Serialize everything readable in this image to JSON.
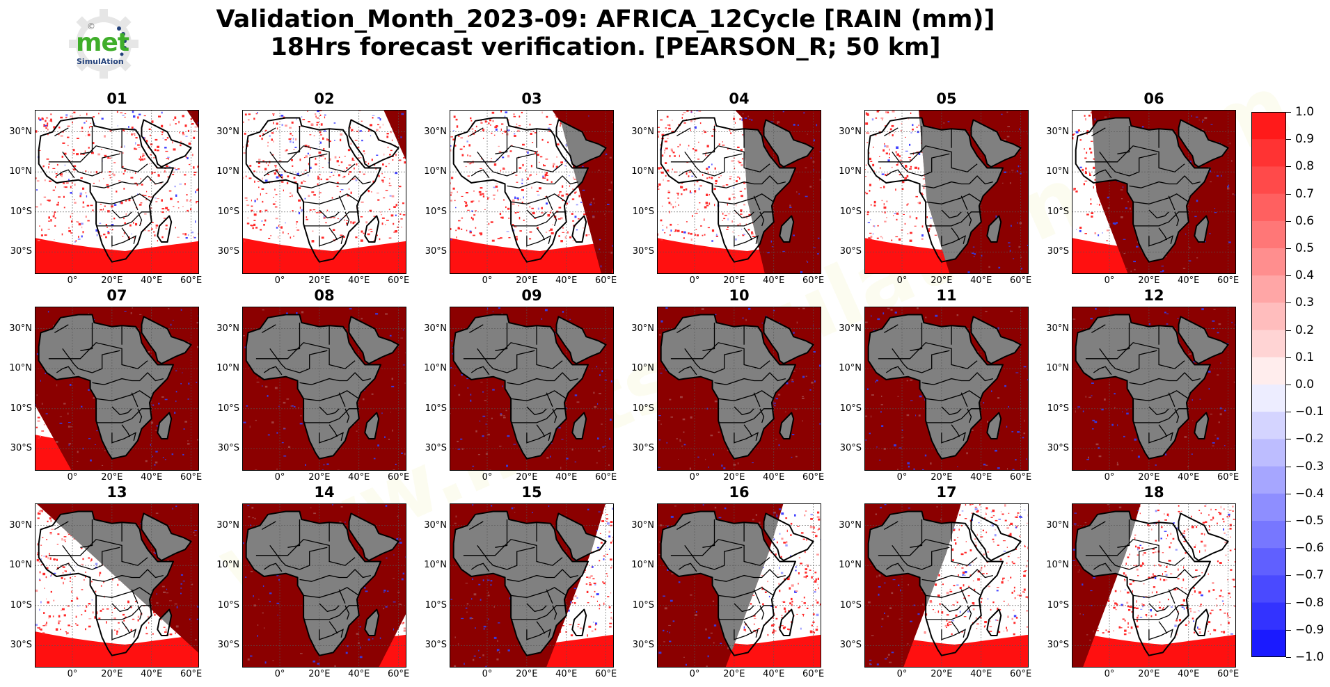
{
  "title_line1": "Validation_Month_2023-09: AFRICA_12Cycle [RAIN (mm)]",
  "title_line2": "18Hrs forecast verification.  [PEARSON_R; 50 km]",
  "logo": {
    "icon": "gear-icon",
    "copyright": "©",
    "word": "met",
    "sub": "SimulAtion"
  },
  "watermark": "www.metsimulation.com",
  "panels": [
    {
      "label": "01",
      "night": [
        [
          1.02,
          0.15
        ],
        [
          0.86,
          -0.1
        ],
        [
          1.06,
          -0.1
        ],
        [
          1.06,
          0.15
        ]
      ]
    },
    {
      "label": "02",
      "night": [
        [
          0.86,
          0.0
        ],
        [
          0.72,
          -0.1
        ],
        [
          1.06,
          -0.1
        ],
        [
          1.06,
          0.45
        ]
      ]
    },
    {
      "label": "03",
      "night": [
        [
          0.68,
          0.08
        ],
        [
          0.55,
          -0.1
        ],
        [
          1.06,
          -0.1
        ],
        [
          1.06,
          0.78
        ],
        [
          0.95,
          1.1
        ]
      ]
    },
    {
      "label": "04",
      "night": [
        [
          0.52,
          0.05
        ],
        [
          0.38,
          -0.1
        ],
        [
          1.06,
          -0.1
        ],
        [
          1.06,
          1.1
        ],
        [
          0.68,
          1.1
        ],
        [
          0.55,
          0.55
        ]
      ]
    },
    {
      "label": "05",
      "night": [
        [
          0.33,
          0.0
        ],
        [
          0.2,
          -0.1
        ],
        [
          1.06,
          -0.1
        ],
        [
          1.06,
          1.1
        ],
        [
          0.55,
          1.1
        ],
        [
          0.38,
          0.55
        ]
      ]
    },
    {
      "label": "06",
      "night": [
        [
          0.12,
          0.0
        ],
        [
          0.0,
          -0.1
        ],
        [
          1.06,
          -0.1
        ],
        [
          1.06,
          1.1
        ],
        [
          0.38,
          1.1
        ],
        [
          0.15,
          0.5
        ]
      ]
    },
    {
      "label": "07",
      "night": [
        [
          -0.1,
          0.42
        ],
        [
          -0.1,
          -0.1
        ],
        [
          1.06,
          -0.1
        ],
        [
          1.06,
          1.1
        ],
        [
          0.28,
          1.1
        ]
      ]
    },
    {
      "label": "08",
      "night": [
        [
          -0.1,
          -0.1
        ],
        [
          1.06,
          -0.1
        ],
        [
          1.06,
          1.1
        ],
        [
          -0.1,
          1.1
        ]
      ]
    },
    {
      "label": "09",
      "night": [
        [
          -0.1,
          -0.1
        ],
        [
          1.06,
          -0.1
        ],
        [
          1.06,
          1.1
        ],
        [
          -0.1,
          1.1
        ]
      ]
    },
    {
      "label": "10",
      "night": [
        [
          -0.1,
          -0.1
        ],
        [
          1.06,
          -0.1
        ],
        [
          1.06,
          1.1
        ],
        [
          -0.1,
          1.1
        ]
      ]
    },
    {
      "label": "11",
      "night": [
        [
          -0.1,
          -0.1
        ],
        [
          1.06,
          -0.1
        ],
        [
          1.06,
          1.1
        ],
        [
          -0.1,
          1.1
        ]
      ]
    },
    {
      "label": "12",
      "night": [
        [
          -0.1,
          -0.1
        ],
        [
          1.06,
          -0.1
        ],
        [
          1.06,
          1.1
        ],
        [
          -0.1,
          1.1
        ]
      ]
    },
    {
      "label": "13",
      "night": [
        [
          -0.1,
          -0.1
        ],
        [
          1.06,
          -0.1
        ],
        [
          1.06,
          1.1
        ],
        [
          1.0,
          1.1
        ],
        [
          1.06,
          0.97
        ]
      ]
    },
    {
      "label": "14",
      "night": [
        [
          -0.1,
          -0.1
        ],
        [
          1.06,
          -0.1
        ],
        [
          1.06,
          0.55
        ],
        [
          0.78,
          1.1
        ],
        [
          -0.1,
          1.1
        ]
      ]
    },
    {
      "label": "15",
      "night": [
        [
          -0.1,
          -0.1
        ],
        [
          0.98,
          -0.1
        ],
        [
          0.86,
          0.3
        ],
        [
          0.55,
          1.1
        ],
        [
          -0.1,
          1.1
        ]
      ]
    },
    {
      "label": "16",
      "night": [
        [
          -0.1,
          -0.1
        ],
        [
          0.8,
          -0.1
        ],
        [
          0.68,
          0.3
        ],
        [
          0.38,
          1.1
        ],
        [
          -0.1,
          1.1
        ]
      ]
    },
    {
      "label": "17",
      "night": [
        [
          -0.1,
          -0.1
        ],
        [
          0.62,
          -0.1
        ],
        [
          0.5,
          0.3
        ],
        [
          0.2,
          1.1
        ],
        [
          -0.1,
          1.1
        ]
      ]
    },
    {
      "label": "18",
      "night": [
        [
          -0.1,
          -0.1
        ],
        [
          0.45,
          -0.1
        ],
        [
          0.33,
          0.3
        ],
        [
          0.03,
          1.1
        ],
        [
          -0.1,
          1.1
        ]
      ]
    }
  ],
  "lat_ticks": [
    {
      "lat": 30,
      "label": "30°N"
    },
    {
      "lat": 10,
      "label": "10°N"
    },
    {
      "lat": -10,
      "label": "10°S"
    },
    {
      "lat": -30,
      "label": "30°S"
    }
  ],
  "lon_ticks": [
    {
      "lon": 0,
      "label": "0°"
    },
    {
      "lon": 20,
      "label": "20°E"
    },
    {
      "lon": 40,
      "label": "40°E"
    },
    {
      "lon": 60,
      "label": "60°E"
    }
  ],
  "extent": {
    "lon_min": -19,
    "lon_max": 64,
    "lat_min": -41,
    "lat_max": 41
  },
  "colorbar": {
    "min": -1.0,
    "max": 1.0,
    "labels": [
      "1.0",
      "0.9",
      "0.8",
      "0.7",
      "0.6",
      "0.5",
      "0.4",
      "0.3",
      "0.2",
      "0.1",
      "0.0",
      "−0.1",
      "−0.2",
      "−0.3",
      "−0.4",
      "−0.5",
      "−0.6",
      "−0.7",
      "−0.8",
      "−0.9",
      "−1.0"
    ],
    "colors": [
      "#ff1a1a",
      "#ff3333",
      "#ff4a4a",
      "#ff6060",
      "#ff7777",
      "#ff8e8e",
      "#ffa6a6",
      "#ffbdbd",
      "#ffd4d4",
      "#ffeded",
      "#ededff",
      "#d4d4ff",
      "#bdbdff",
      "#a6a6ff",
      "#8e8eff",
      "#7777ff",
      "#6060ff",
      "#4a4aff",
      "#3333ff",
      "#1a1aff"
    ]
  },
  "colors": {
    "night_mask": "#808080",
    "dark_red": "#8b0000",
    "ocean_red": "#ff1010",
    "blue": "#2020ff",
    "border": "#000000"
  }
}
